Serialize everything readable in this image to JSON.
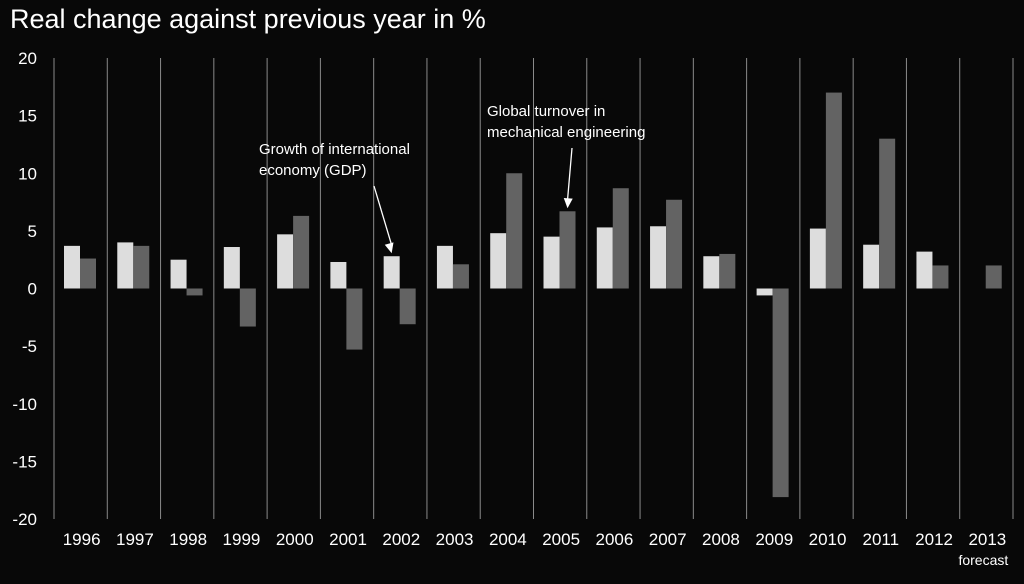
{
  "chart_data": {
    "type": "bar",
    "title": "Real change against previous year in %",
    "categories": [
      "1996",
      "1997",
      "1998",
      "1999",
      "2000",
      "2001",
      "2002",
      "2003",
      "2004",
      "2005",
      "2006",
      "2007",
      "2008",
      "2009",
      "2010",
      "2011",
      "2012",
      "2013"
    ],
    "category_sublabels": {
      "2013": "forecast"
    },
    "series": [
      {
        "values": [
          3.7,
          4.0,
          2.5,
          3.6,
          4.7,
          2.3,
          2.8,
          3.7,
          4.8,
          4.5,
          5.3,
          5.4,
          2.8,
          -0.6,
          5.2,
          3.8,
          3.2,
          0.0
        ],
        "color": "#dddddd"
      },
      {
        "values": [
          2.6,
          3.7,
          -0.6,
          -3.3,
          6.3,
          -5.3,
          -3.1,
          2.1,
          10.0,
          6.7,
          8.7,
          7.7,
          3.0,
          -18.1,
          17.0,
          13.0,
          2.0,
          2.0
        ],
        "color": "#636363"
      }
    ],
    "yticks": [
      20,
      15,
      10,
      5,
      0,
      -5,
      -10,
      -15,
      -20
    ],
    "ylim": [
      -20,
      20
    ],
    "gridlines": "vertical",
    "annotations": [
      {
        "lines": [
          "Growth of international",
          "economy (GDP)"
        ],
        "points_to": {
          "category": "2002",
          "series": 0
        }
      },
      {
        "lines": [
          "Global turnover in",
          "mechanical engineering"
        ],
        "points_to": {
          "category": "2005",
          "series": 1
        }
      }
    ],
    "colors": {
      "background": "#080808",
      "text": "#ffffff",
      "grid": "#8a8a8a"
    }
  }
}
